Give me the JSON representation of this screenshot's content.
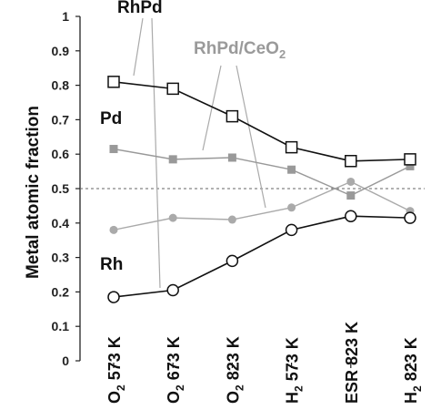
{
  "chart_data": {
    "type": "line",
    "ylabel": "Metal atomic fraction",
    "ylim": [
      0,
      1
    ],
    "yticks": [
      0,
      0.1,
      0.2,
      0.3,
      0.4,
      0.5,
      0.6,
      0.7,
      0.8,
      0.9,
      1
    ],
    "ytick_labels": [
      "0",
      "0.1",
      "0.2",
      "0.3",
      "0.4",
      "0.5",
      "0.6",
      "0.7",
      "0.8",
      "0.9",
      "1"
    ],
    "categories": [
      {
        "main": "O",
        "sub": "2",
        "rest": " 573 K"
      },
      {
        "main": "O",
        "sub": "2",
        "rest": " 673 K"
      },
      {
        "main": "O",
        "sub": "2",
        "rest": " 823 K"
      },
      {
        "main": "H",
        "sub": "2",
        "rest": " 573 K"
      },
      {
        "main": "ESR",
        "sub": "",
        "rest": " 823 K"
      },
      {
        "main": "H",
        "sub": "2",
        "rest": " 823 K"
      }
    ],
    "reference_line": {
      "y": 0.5,
      "style": "dashed"
    },
    "series": [
      {
        "key": "rhpd_pd",
        "values": [
          0.81,
          0.79,
          0.71,
          0.62,
          0.58,
          0.585
        ],
        "color": "#111111",
        "marker": "open-square"
      },
      {
        "key": "rhpd_rh",
        "values": [
          0.185,
          0.205,
          0.29,
          0.38,
          0.42,
          0.415
        ],
        "color": "#111111",
        "marker": "open-circle"
      },
      {
        "key": "ceo2_pd",
        "values": [
          0.615,
          0.585,
          0.59,
          0.555,
          0.48,
          0.565
        ],
        "color": "#999999",
        "marker": "filled-square"
      },
      {
        "key": "ceo2_rh",
        "values": [
          0.38,
          0.415,
          0.41,
          0.445,
          0.52,
          0.435
        ],
        "color": "#aaaaaa",
        "marker": "filled-circle"
      }
    ],
    "annotations": {
      "rhpd": "RhPd",
      "ceo2_main": "RhPd/CeO",
      "ceo2_sub": "2",
      "pd": "Pd",
      "rh": "Rh"
    },
    "colors": {
      "axis": "#222222",
      "ceo2_label": "#9a9a9a",
      "dashed": "#666666",
      "leader": "#aaaaaa"
    }
  }
}
